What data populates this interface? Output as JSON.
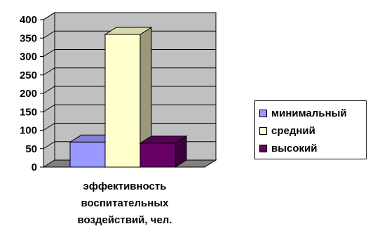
{
  "chart_data": {
    "type": "bar",
    "categories": [
      "эффективность воспитательных воздействий, чел."
    ],
    "category_lines": [
      "эффективность",
      "воспитательных",
      "воздействий, чел."
    ],
    "series": [
      {
        "name": "минимальный",
        "values": [
          68
        ],
        "color": "#9999ff"
      },
      {
        "name": "средний",
        "values": [
          360
        ],
        "color": "#ffffcc"
      },
      {
        "name": "высокий",
        "values": [
          65
        ],
        "color": "#660066"
      }
    ],
    "y_ticks": [
      "0",
      "50",
      "100",
      "150",
      "200",
      "250",
      "300",
      "350",
      "400"
    ],
    "ylim": [
      0,
      400
    ],
    "grid": true,
    "legend_position": "right",
    "wall_color": "#c0c0c0",
    "floor_color": "#808080"
  }
}
